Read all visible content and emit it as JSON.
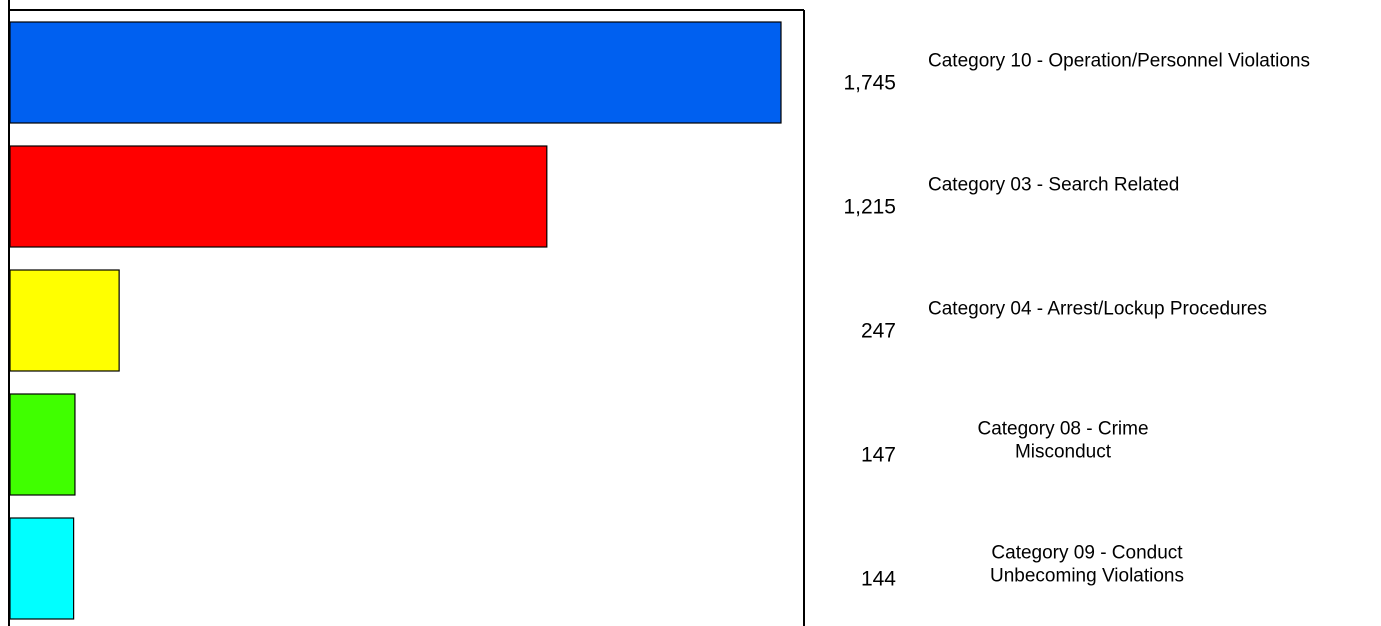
{
  "chart_data": {
    "type": "bar",
    "orientation": "horizontal",
    "title": "",
    "xlabel": "",
    "ylabel": "",
    "xlim": [
      0,
      1745
    ],
    "grid": false,
    "legend": "none",
    "categories": [
      "Category 10 - Operation/Personnel Violations",
      "Category 03 - Search Related",
      "Category 04 - Arrest/Lockup Procedures",
      "Category 08 - Crime Misconduct",
      "Category 09 - Conduct Unbecoming Violations"
    ],
    "category_lines": [
      [
        "Category 10 - Operation/Personnel Violations"
      ],
      [
        "Category 03 - Search Related"
      ],
      [
        "Category 04 - Arrest/Lockup Procedures"
      ],
      [
        "Category 08 - Crime",
        "Misconduct"
      ],
      [
        "Category 09 - Conduct",
        "Unbecoming Violations"
      ]
    ],
    "values": [
      1745,
      1215,
      247,
      147,
      144
    ],
    "value_labels": [
      "1,745",
      "1,215",
      "247",
      "147",
      "144"
    ],
    "colors": [
      "#0060f0",
      "#ff0000",
      "#ffff00",
      "#40ff00",
      "#00ffff"
    ]
  }
}
